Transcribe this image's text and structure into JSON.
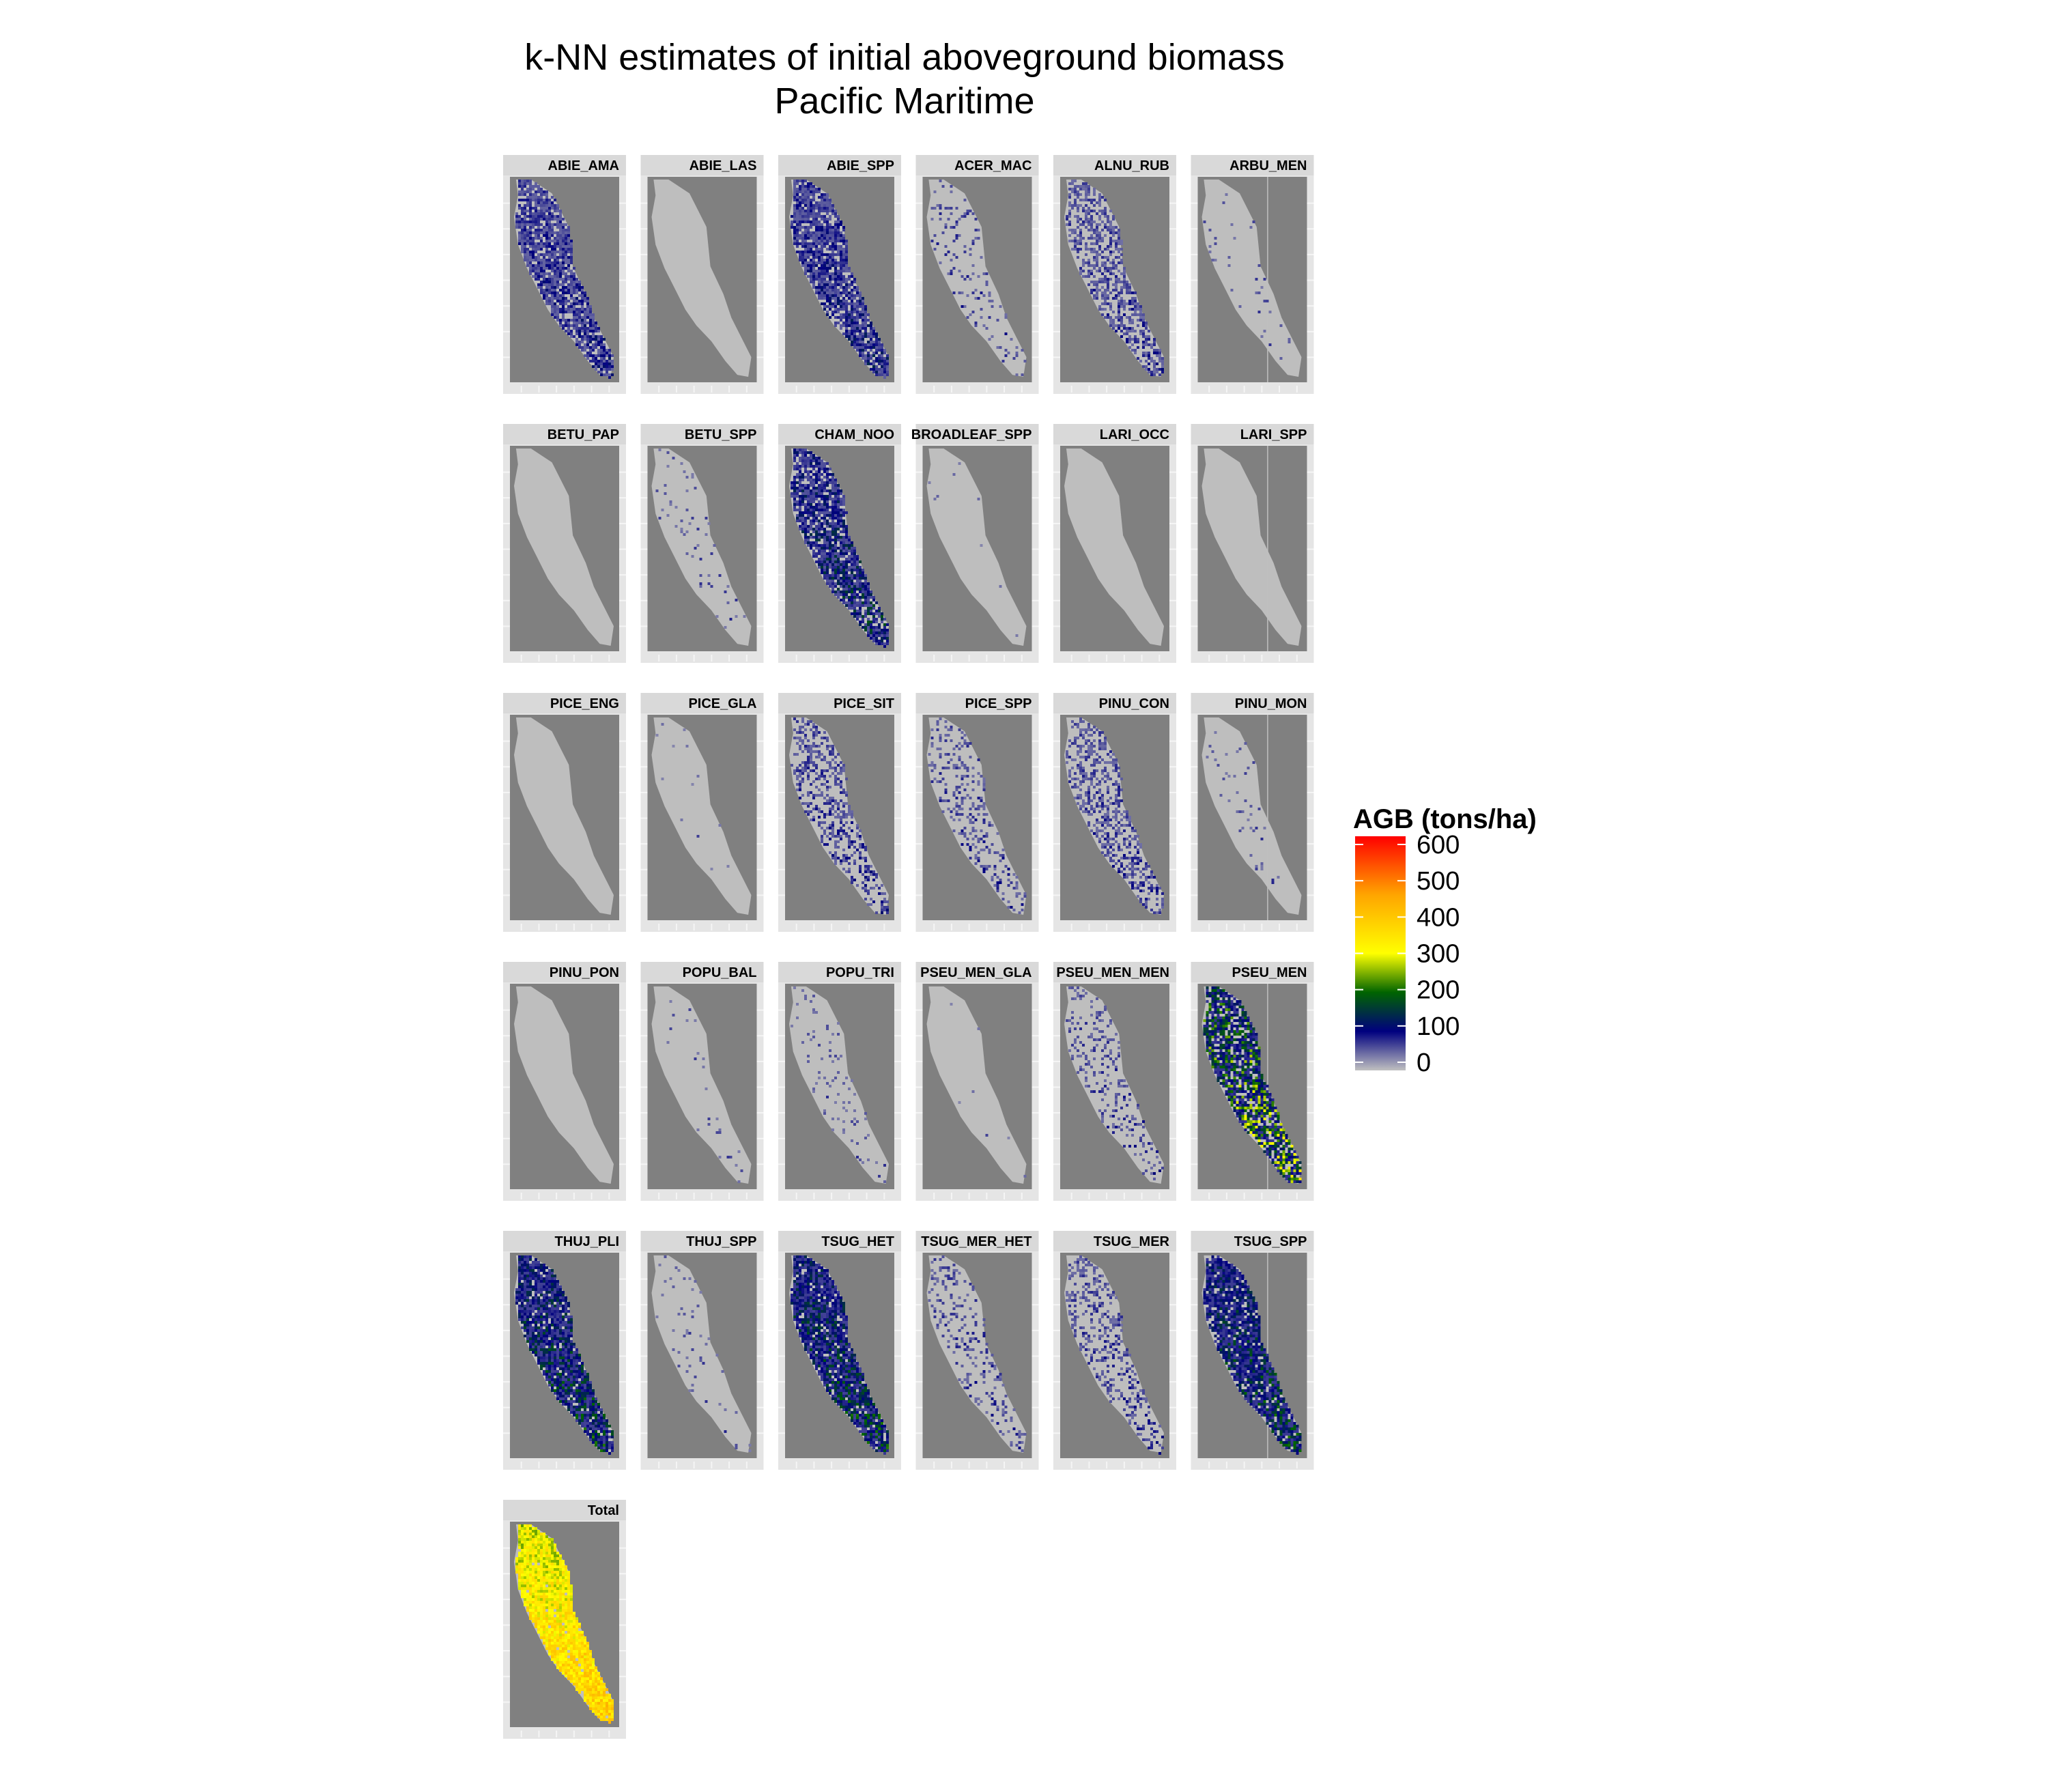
{
  "chart_data": {
    "type": "heatmap",
    "title": "k-NN estimates of initial aboveground biomass",
    "subtitle": "Pacific Maritime",
    "facet_layout": {
      "columns": 6,
      "rows": 6
    },
    "panels": [
      {
        "label": "ABIE_AMA",
        "coverage": 0.85,
        "mean_agb": 80,
        "max_agb": 120
      },
      {
        "label": "ABIE_LAS",
        "coverage": 0.0,
        "mean_agb": 0,
        "max_agb": 0
      },
      {
        "label": "ABIE_SPP",
        "coverage": 0.85,
        "mean_agb": 85,
        "max_agb": 130
      },
      {
        "label": "ACER_MAC",
        "coverage": 0.12,
        "mean_agb": 70,
        "max_agb": 100
      },
      {
        "label": "ALNU_RUB",
        "coverage": 0.55,
        "mean_agb": 70,
        "max_agb": 100
      },
      {
        "label": "ARBU_MEN",
        "coverage": 0.03,
        "mean_agb": 60,
        "max_agb": 80
      },
      {
        "label": "BETU_PAP",
        "coverage": 0.0,
        "mean_agb": 0,
        "max_agb": 0
      },
      {
        "label": "BETU_SPP",
        "coverage": 0.05,
        "mean_agb": 60,
        "max_agb": 80
      },
      {
        "label": "CHAM_NOO",
        "coverage": 0.85,
        "mean_agb": 95,
        "max_agb": 170
      },
      {
        "label": "BROADLEAF_SPP",
        "coverage": 0.01,
        "mean_agb": 50,
        "max_agb": 70
      },
      {
        "label": "LARI_OCC",
        "coverage": 0.0,
        "mean_agb": 0,
        "max_agb": 0
      },
      {
        "label": "LARI_SPP",
        "coverage": 0.0,
        "mean_agb": 0,
        "max_agb": 0
      },
      {
        "label": "PICE_ENG",
        "coverage": 0.0,
        "mean_agb": 0,
        "max_agb": 0
      },
      {
        "label": "PICE_GLA",
        "coverage": 0.01,
        "mean_agb": 50,
        "max_agb": 70
      },
      {
        "label": "PICE_SIT",
        "coverage": 0.4,
        "mean_agb": 75,
        "max_agb": 110
      },
      {
        "label": "PICE_SPP",
        "coverage": 0.25,
        "mean_agb": 70,
        "max_agb": 100
      },
      {
        "label": "PINU_CON",
        "coverage": 0.45,
        "mean_agb": 70,
        "max_agb": 100
      },
      {
        "label": "PINU_MON",
        "coverage": 0.04,
        "mean_agb": 60,
        "max_agb": 80
      },
      {
        "label": "PINU_PON",
        "coverage": 0.0,
        "mean_agb": 0,
        "max_agb": 0
      },
      {
        "label": "POPU_BAL",
        "coverage": 0.03,
        "mean_agb": 60,
        "max_agb": 80
      },
      {
        "label": "POPU_TRI",
        "coverage": 0.06,
        "mean_agb": 60,
        "max_agb": 80
      },
      {
        "label": "PSEU_MEN_GLA",
        "coverage": 0.01,
        "mean_agb": 50,
        "max_agb": 70
      },
      {
        "label": "PSEU_MEN_MEN",
        "coverage": 0.2,
        "mean_agb": 70,
        "max_agb": 100
      },
      {
        "label": "PSEU_MEN",
        "coverage": 0.85,
        "mean_agb": 120,
        "max_agb": 320
      },
      {
        "label": "THUJ_PLI",
        "coverage": 0.92,
        "mean_agb": 110,
        "max_agb": 200
      },
      {
        "label": "THUJ_SPP",
        "coverage": 0.05,
        "mean_agb": 60,
        "max_agb": 80
      },
      {
        "label": "TSUG_HET",
        "coverage": 0.92,
        "mean_agb": 110,
        "max_agb": 200
      },
      {
        "label": "TSUG_MER_HET",
        "coverage": 0.2,
        "mean_agb": 70,
        "max_agb": 100
      },
      {
        "label": "TSUG_MER",
        "coverage": 0.3,
        "mean_agb": 70,
        "max_agb": 100
      },
      {
        "label": "TSUG_SPP",
        "coverage": 0.88,
        "mean_agb": 115,
        "max_agb": 200
      },
      {
        "label": "Total",
        "coverage": 0.98,
        "mean_agb": 330,
        "max_agb": 450
      }
    ],
    "legend": {
      "title": "AGB (tons/ha)",
      "breaks": [
        0,
        100,
        200,
        300,
        400,
        500,
        600
      ],
      "limits": [
        0,
        600
      ],
      "position": "right",
      "colors": [
        "#C0C0C0",
        "#00007F",
        "#006400",
        "#FFFF00",
        "#FFA500",
        "#FF0000"
      ],
      "color_stops": [
        0,
        100,
        200,
        300,
        450,
        600
      ]
    },
    "panel_background": "#808080",
    "landmass_color": "#BEBEBE",
    "grid": true,
    "xlabel": "",
    "ylabel": ""
  }
}
